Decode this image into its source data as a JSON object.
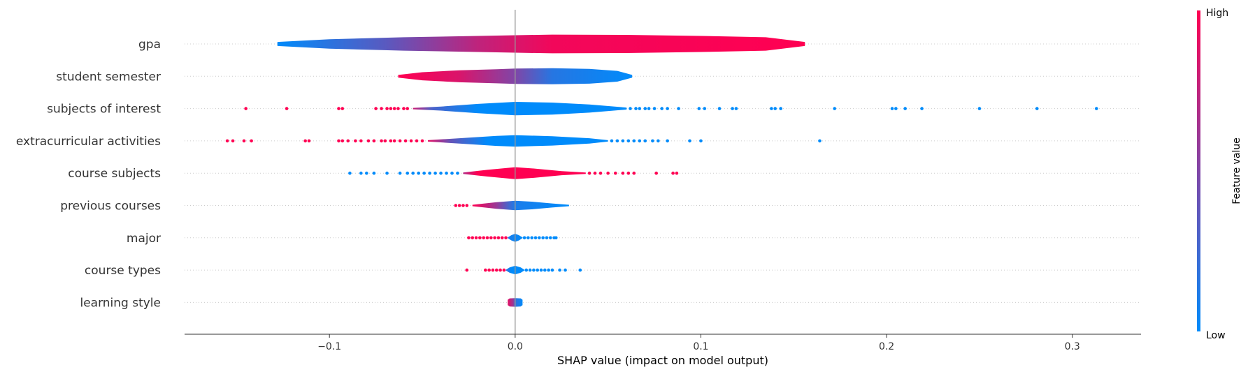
{
  "chart_data": {
    "type": "violin",
    "xlabel": "SHAP value (impact on model output)",
    "x_ticks": [
      -0.1,
      0.0,
      0.1,
      0.2,
      0.3
    ],
    "x_tick_labels": [
      "−0.1",
      "0.0",
      "0.1",
      "0.2",
      "0.3"
    ],
    "xlim": [
      -0.178,
      0.337
    ],
    "colorbar": {
      "title": "Feature value",
      "high_label": "High",
      "low_label": "Low",
      "high_color": "#ff0052",
      "low_color": "#008bfb"
    },
    "features": [
      {
        "name": "gpa",
        "range": [
          -0.128,
          0.156
        ],
        "profile": [
          [
            -0.128,
            0.006
          ],
          [
            -0.1,
            0.014
          ],
          [
            -0.06,
            0.02
          ],
          [
            -0.02,
            0.024
          ],
          [
            0.0,
            0.026
          ],
          [
            0.02,
            0.028
          ],
          [
            0.06,
            0.027
          ],
          [
            0.1,
            0.024
          ],
          [
            0.135,
            0.02
          ],
          [
            0.156,
            0.006
          ]
        ],
        "gradient": [
          [
            -0.128,
            0.0
          ],
          [
            -0.07,
            0.35
          ],
          [
            -0.02,
            0.75
          ],
          [
            0.02,
            0.95
          ],
          [
            0.156,
            1.0
          ]
        ],
        "outliers": []
      },
      {
        "name": "student semester",
        "range": [
          -0.063,
          0.063
        ],
        "profile": [
          [
            -0.063,
            0.004
          ],
          [
            -0.05,
            0.012
          ],
          [
            -0.03,
            0.018
          ],
          [
            -0.01,
            0.021
          ],
          [
            0.0,
            0.023
          ],
          [
            0.02,
            0.024
          ],
          [
            0.04,
            0.022
          ],
          [
            0.055,
            0.016
          ],
          [
            0.063,
            0.004
          ]
        ],
        "gradient": [
          [
            -0.063,
            1.0
          ],
          [
            -0.03,
            0.85
          ],
          [
            0.0,
            0.5
          ],
          [
            0.02,
            0.15
          ],
          [
            0.063,
            0.0
          ]
        ],
        "outliers": []
      },
      {
        "name": "subjects of interest",
        "range": [
          -0.055,
          0.06
        ],
        "profile": [
          [
            -0.055,
            0.002
          ],
          [
            -0.04,
            0.006
          ],
          [
            -0.02,
            0.014
          ],
          [
            0.0,
            0.02
          ],
          [
            0.02,
            0.018
          ],
          [
            0.04,
            0.012
          ],
          [
            0.06,
            0.003
          ]
        ],
        "gradient": [
          [
            -0.055,
            0.8
          ],
          [
            -0.045,
            0.3
          ],
          [
            -0.02,
            0.0
          ],
          [
            0.06,
            0.0
          ]
        ],
        "outliers": [
          [
            -0.145,
            1
          ],
          [
            -0.123,
            1
          ],
          [
            -0.095,
            1
          ],
          [
            -0.093,
            1
          ],
          [
            -0.075,
            1
          ],
          [
            -0.072,
            1
          ],
          [
            -0.069,
            1
          ],
          [
            -0.067,
            1
          ],
          [
            -0.065,
            1
          ],
          [
            -0.063,
            1
          ],
          [
            -0.06,
            1
          ],
          [
            -0.058,
            1
          ],
          [
            0.062,
            0
          ],
          [
            0.065,
            0
          ],
          [
            0.067,
            0
          ],
          [
            0.07,
            0
          ],
          [
            0.072,
            0
          ],
          [
            0.075,
            0
          ],
          [
            0.079,
            0
          ],
          [
            0.082,
            0
          ],
          [
            0.088,
            0
          ],
          [
            0.099,
            0
          ],
          [
            0.102,
            0
          ],
          [
            0.11,
            0
          ],
          [
            0.117,
            0
          ],
          [
            0.119,
            0
          ],
          [
            0.138,
            0
          ],
          [
            0.14,
            0
          ],
          [
            0.143,
            0
          ],
          [
            0.172,
            0
          ],
          [
            0.203,
            0
          ],
          [
            0.205,
            0
          ],
          [
            0.21,
            0
          ],
          [
            0.219,
            0
          ],
          [
            0.25,
            0
          ],
          [
            0.281,
            0
          ],
          [
            0.313,
            0
          ]
        ]
      },
      {
        "name": "extracurricular activities",
        "range": [
          -0.047,
          0.05
        ],
        "profile": [
          [
            -0.047,
            0.002
          ],
          [
            -0.03,
            0.008
          ],
          [
            -0.01,
            0.015
          ],
          [
            0.0,
            0.017
          ],
          [
            0.02,
            0.014
          ],
          [
            0.04,
            0.008
          ],
          [
            0.05,
            0.002
          ]
        ],
        "gradient": [
          [
            -0.047,
            0.9
          ],
          [
            -0.035,
            0.4
          ],
          [
            -0.015,
            0.0
          ],
          [
            0.05,
            0.0
          ]
        ],
        "outliers": [
          [
            -0.155,
            1
          ],
          [
            -0.152,
            1
          ],
          [
            -0.146,
            1
          ],
          [
            -0.142,
            1
          ],
          [
            -0.113,
            1
          ],
          [
            -0.111,
            1
          ],
          [
            -0.095,
            1
          ],
          [
            -0.093,
            1
          ],
          [
            -0.09,
            1
          ],
          [
            -0.086,
            1
          ],
          [
            -0.083,
            1
          ],
          [
            -0.079,
            1
          ],
          [
            -0.076,
            1
          ],
          [
            -0.072,
            1
          ],
          [
            -0.07,
            1
          ],
          [
            -0.067,
            1
          ],
          [
            -0.065,
            1
          ],
          [
            -0.062,
            1
          ],
          [
            -0.059,
            1
          ],
          [
            -0.056,
            1
          ],
          [
            -0.053,
            1
          ],
          [
            -0.05,
            1
          ],
          [
            0.052,
            0
          ],
          [
            0.055,
            0
          ],
          [
            0.058,
            0
          ],
          [
            0.061,
            0
          ],
          [
            0.064,
            0
          ],
          [
            0.067,
            0
          ],
          [
            0.07,
            0
          ],
          [
            0.074,
            0
          ],
          [
            0.077,
            0
          ],
          [
            0.082,
            0
          ],
          [
            0.094,
            0
          ],
          [
            0.1,
            0
          ],
          [
            0.164,
            0
          ]
        ]
      },
      {
        "name": "course subjects",
        "range": [
          -0.028,
          0.038
        ],
        "profile": [
          [
            -0.028,
            0.002
          ],
          [
            -0.015,
            0.01
          ],
          [
            0.0,
            0.018
          ],
          [
            0.01,
            0.014
          ],
          [
            0.025,
            0.006
          ],
          [
            0.038,
            0.002
          ]
        ],
        "gradient": [
          [
            -0.028,
            0.7
          ],
          [
            -0.02,
            1.0
          ],
          [
            0.038,
            1.0
          ]
        ],
        "outliers": [
          [
            -0.089,
            0
          ],
          [
            -0.083,
            0
          ],
          [
            -0.08,
            0
          ],
          [
            -0.076,
            0
          ],
          [
            -0.069,
            0
          ],
          [
            -0.062,
            0
          ],
          [
            -0.058,
            0
          ],
          [
            -0.055,
            0
          ],
          [
            -0.052,
            0
          ],
          [
            -0.049,
            0
          ],
          [
            -0.046,
            0
          ],
          [
            -0.043,
            0
          ],
          [
            -0.04,
            0
          ],
          [
            -0.037,
            0
          ],
          [
            -0.034,
            0
          ],
          [
            -0.031,
            0
          ],
          [
            0.04,
            1
          ],
          [
            0.043,
            1
          ],
          [
            0.046,
            1
          ],
          [
            0.05,
            1
          ],
          [
            0.054,
            1
          ],
          [
            0.058,
            1
          ],
          [
            0.061,
            1
          ],
          [
            0.064,
            1
          ],
          [
            0.076,
            1
          ],
          [
            0.085,
            1
          ],
          [
            0.087,
            1
          ]
        ]
      },
      {
        "name": "previous courses",
        "range": [
          -0.023,
          0.029
        ],
        "profile": [
          [
            -0.023,
            0.002
          ],
          [
            -0.01,
            0.01
          ],
          [
            0.0,
            0.014
          ],
          [
            0.01,
            0.011
          ],
          [
            0.02,
            0.006
          ],
          [
            0.029,
            0.002
          ]
        ],
        "gradient": [
          [
            -0.023,
            1.0
          ],
          [
            -0.01,
            0.6
          ],
          [
            0.0,
            0.1
          ],
          [
            0.029,
            0.0
          ]
        ],
        "outliers": [
          [
            -0.032,
            1
          ],
          [
            -0.03,
            1
          ],
          [
            -0.028,
            1
          ],
          [
            -0.026,
            1
          ]
        ]
      },
      {
        "name": "major",
        "range": [
          -0.004,
          0.004
        ],
        "profile": [
          [
            -0.004,
            0.001
          ],
          [
            -0.002,
            0.008
          ],
          [
            0.0,
            0.012
          ],
          [
            0.002,
            0.008
          ],
          [
            0.004,
            0.001
          ]
        ],
        "gradient": [
          [
            -0.004,
            0.1
          ],
          [
            0.004,
            0.0
          ]
        ],
        "outliers": [
          [
            -0.025,
            1
          ],
          [
            -0.023,
            1
          ],
          [
            -0.021,
            1
          ],
          [
            -0.019,
            1
          ],
          [
            -0.017,
            1
          ],
          [
            -0.015,
            1
          ],
          [
            -0.013,
            1
          ],
          [
            -0.011,
            1
          ],
          [
            -0.009,
            1
          ],
          [
            -0.007,
            1
          ],
          [
            -0.005,
            1
          ],
          [
            0.005,
            0
          ],
          [
            0.007,
            0
          ],
          [
            0.009,
            0
          ],
          [
            0.011,
            0
          ],
          [
            0.013,
            0
          ],
          [
            0.015,
            0
          ],
          [
            0.017,
            0
          ],
          [
            0.019,
            0
          ],
          [
            0.021,
            0
          ],
          [
            0.022,
            0
          ]
        ]
      },
      {
        "name": "course types",
        "range": [
          -0.005,
          0.005
        ],
        "profile": [
          [
            -0.005,
            0.001
          ],
          [
            -0.003,
            0.008
          ],
          [
            0.0,
            0.013
          ],
          [
            0.003,
            0.008
          ],
          [
            0.005,
            0.001
          ]
        ],
        "gradient": [
          [
            -0.005,
            0.2
          ],
          [
            -0.002,
            0.0
          ],
          [
            0.005,
            0.0
          ]
        ],
        "outliers": [
          [
            -0.026,
            1
          ],
          [
            -0.016,
            1
          ],
          [
            -0.014,
            1
          ],
          [
            -0.012,
            1
          ],
          [
            -0.01,
            1
          ],
          [
            -0.008,
            1
          ],
          [
            -0.006,
            1
          ],
          [
            0.006,
            0
          ],
          [
            0.008,
            0
          ],
          [
            0.01,
            0
          ],
          [
            0.012,
            0
          ],
          [
            0.014,
            0
          ],
          [
            0.016,
            0
          ],
          [
            0.018,
            0
          ],
          [
            0.02,
            0
          ],
          [
            0.024,
            0
          ],
          [
            0.027,
            0
          ],
          [
            0.035,
            0
          ]
        ]
      },
      {
        "name": "learning style",
        "range": [
          -0.004,
          0.004
        ],
        "profile": [
          [
            -0.004,
            0.008
          ],
          [
            -0.003,
            0.012
          ],
          [
            0.0,
            0.013
          ],
          [
            0.003,
            0.012
          ],
          [
            0.004,
            0.008
          ]
        ],
        "gradient": [
          [
            -0.004,
            0.9
          ],
          [
            -0.001,
            0.6
          ],
          [
            0.0,
            0.2
          ],
          [
            0.004,
            0.0
          ]
        ],
        "outliers": []
      }
    ]
  }
}
